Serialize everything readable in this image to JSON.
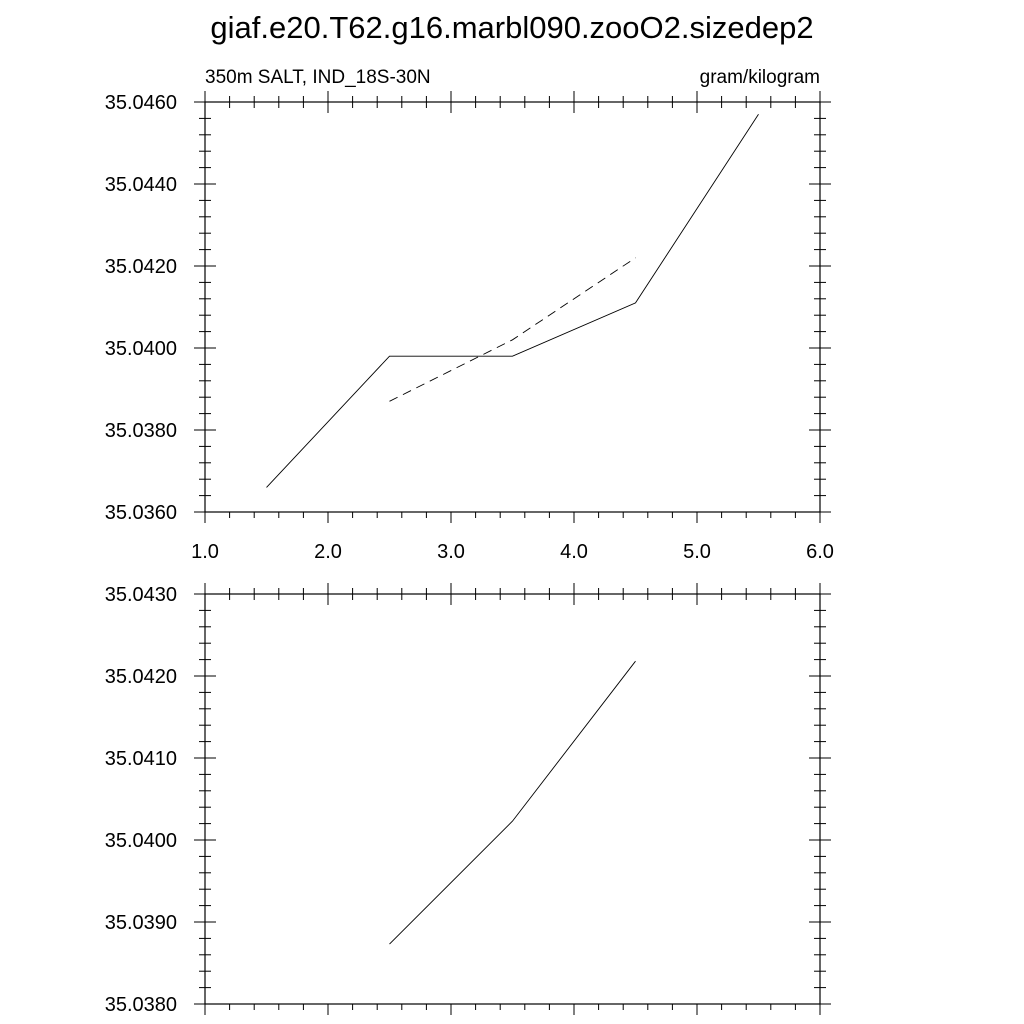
{
  "title": "giaf.e20.T62.g16.marbl090.zooO2.sizedep2",
  "chart_data": [
    {
      "type": "line",
      "left_label": "350m SALT, IND_18S-30N",
      "right_label": "gram/kilogram",
      "xlim": [
        1.0,
        6.0
      ],
      "ylim": [
        35.036,
        35.046
      ],
      "x_ticks": [
        1.0,
        2.0,
        3.0,
        4.0,
        5.0,
        6.0
      ],
      "x_tick_labels": [
        "1.0",
        "2.0",
        "3.0",
        "4.0",
        "5.0",
        "6.0"
      ],
      "y_ticks": [
        35.036,
        35.038,
        35.04,
        35.042,
        35.044,
        35.046
      ],
      "y_tick_labels": [
        "35.0360",
        "35.0380",
        "35.0400",
        "35.0420",
        "35.0440",
        "35.0460"
      ],
      "grid": false,
      "series": [
        {
          "style": "solid",
          "x": [
            1.5,
            2.5,
            3.5,
            4.5,
            5.5
          ],
          "y": [
            35.0366,
            35.0398,
            35.0398,
            35.0411,
            35.0457
          ]
        },
        {
          "style": "dashed",
          "x": [
            2.5,
            3.5,
            4.5
          ],
          "y": [
            35.0387,
            35.0402,
            35.0422
          ]
        }
      ]
    },
    {
      "type": "line",
      "xlim": [
        1.0,
        6.0
      ],
      "ylim": [
        35.038,
        35.043
      ],
      "x_ticks": [
        1.0,
        2.0,
        3.0,
        4.0,
        5.0,
        6.0
      ],
      "y_ticks": [
        35.038,
        35.039,
        35.04,
        35.041,
        35.042,
        35.043
      ],
      "y_tick_labels": [
        "35.0380",
        "35.0390",
        "35.0400",
        "35.0410",
        "35.0420",
        "35.0430"
      ],
      "grid": false,
      "series": [
        {
          "style": "solid",
          "x": [
            2.5,
            3.5,
            4.5
          ],
          "y": [
            35.03873,
            35.04023,
            35.04218
          ]
        }
      ]
    }
  ]
}
